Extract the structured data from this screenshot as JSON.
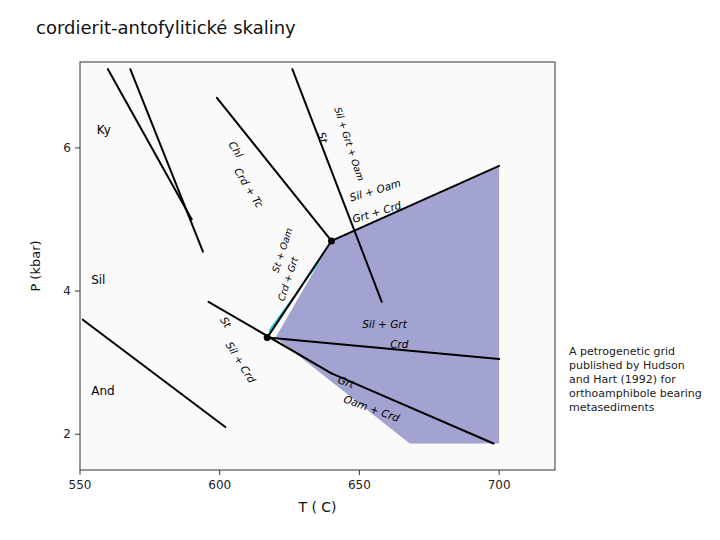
{
  "chart_data": {
    "type": "phase_diagram",
    "title": "cordierit-antofylitické skaliny",
    "xlabel": "T ( C)",
    "ylabel": "P (kbar)",
    "xlim": [
      550,
      720
    ],
    "ylim": [
      1.5,
      7.2
    ],
    "xticks": [
      550,
      600,
      650,
      700
    ],
    "yticks": [
      2,
      4,
      6
    ],
    "color": "black",
    "regions": [
      {
        "color": "#9999cc",
        "x": [
          640,
          700,
          700,
          668,
          620
        ],
        "y": [
          4.7,
          5.75,
          1.87,
          1.87,
          3.35
        ]
      },
      {
        "color": "#00cccc",
        "x": [
          617,
          640,
          634,
          624,
          618
        ],
        "y": [
          3.35,
          4.7,
          4.3,
          3.8,
          3.48
        ]
      }
    ],
    "lines": [
      {
        "x": [
          568,
          594
        ],
        "y": [
          7.1,
          4.55
        ]
      },
      {
        "x": [
          551,
          602
        ],
        "y": [
          3.6,
          2.1
        ]
      },
      {
        "x": [
          560,
          590
        ],
        "y": [
          7.1,
          5.0
        ]
      },
      {
        "x": [
          599,
          640
        ],
        "y": [
          6.7,
          4.7
        ]
      },
      {
        "x": [
          626,
          658
        ],
        "y": [
          7.1,
          3.85
        ]
      },
      {
        "x": [
          640,
          700
        ],
        "y": [
          4.7,
          5.75
        ]
      },
      {
        "x": [
          617,
          700
        ],
        "y": [
          3.35,
          3.05
        ]
      },
      {
        "x": [
          596,
          640
        ],
        "y": [
          3.85,
          2.85
        ]
      },
      {
        "x": [
          640,
          698
        ],
        "y": [
          2.85,
          1.87
        ]
      },
      {
        "x": [
          617,
          640
        ],
        "y": [
          3.35,
          4.7
        ]
      }
    ],
    "points": {
      "x": [
        617,
        640
      ],
      "y": [
        3.35,
        4.7
      ]
    },
    "annotations": [
      {
        "text": "Ky",
        "x": 556,
        "y": 6.2
      },
      {
        "text": "Sil",
        "x": 554,
        "y": 4.1
      },
      {
        "text": "And",
        "x": 554,
        "y": 2.55
      },
      {
        "text": "Chl",
        "x": 603,
        "y": 6.05
      },
      {
        "text": "Crd + Tc",
        "x": 605,
        "y": 5.68
      },
      {
        "text": "St",
        "x": 635,
        "y": 6.2
      },
      {
        "text": "Sil + Grt + Oam",
        "x": 641,
        "y": 6.55
      },
      {
        "text": "Sil + Oam",
        "x": 647,
        "y": 5.25
      },
      {
        "text": "Grt + Crd",
        "x": 648,
        "y": 4.95
      },
      {
        "text": "Sil + Grt",
        "x": 651,
        "y": 3.48
      },
      {
        "text": "Crd",
        "x": 661,
        "y": 3.2
      },
      {
        "text": "St + Oam",
        "x": 621,
        "y": 4.25
      },
      {
        "text": "Crd + Grt",
        "x": 623,
        "y": 3.85
      },
      {
        "text": "St",
        "x": 600,
        "y": 3.6
      },
      {
        "text": "Sil + Crd",
        "x": 602,
        "y": 3.25
      },
      {
        "text": "Grt",
        "x": 642,
        "y": 2.72
      },
      {
        "text": "Oam + Crd",
        "x": 644,
        "y": 2.45
      }
    ],
    "caption": "A petrogenetic grid\npublished by Hudson\nand Hart (1992) for\northoamphibole bearing\nmetasediments"
  }
}
